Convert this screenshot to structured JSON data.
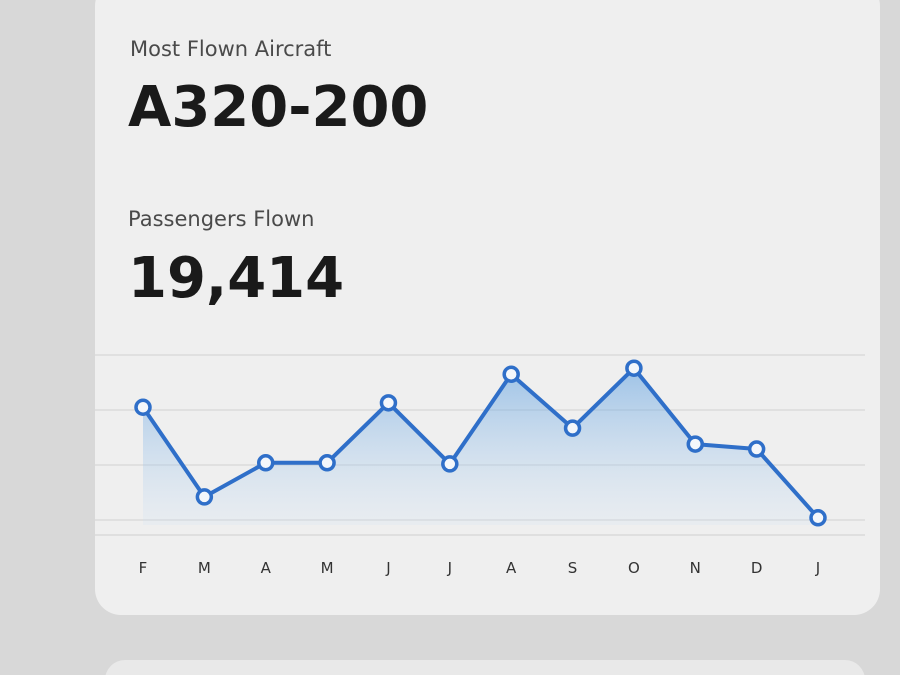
{
  "header": {
    "label": "Most Flown Aircraft",
    "value": "A320-200"
  },
  "stat": {
    "label": "Passengers Flown",
    "value": "19,414"
  },
  "chart_data": {
    "type": "line",
    "categories": [
      "F",
      "M",
      "A",
      "M",
      "J",
      "J",
      "A",
      "S",
      "O",
      "N",
      "D",
      "J"
    ],
    "values": [
      2.05,
      0.42,
      1.04,
      1.04,
      2.13,
      1.02,
      2.65,
      1.67,
      2.76,
      1.38,
      1.29,
      0.04
    ],
    "color": "#2f6fc9",
    "ylim": [
      0,
      3
    ],
    "yticks": [
      0,
      1,
      2,
      3
    ],
    "grid": true
  }
}
